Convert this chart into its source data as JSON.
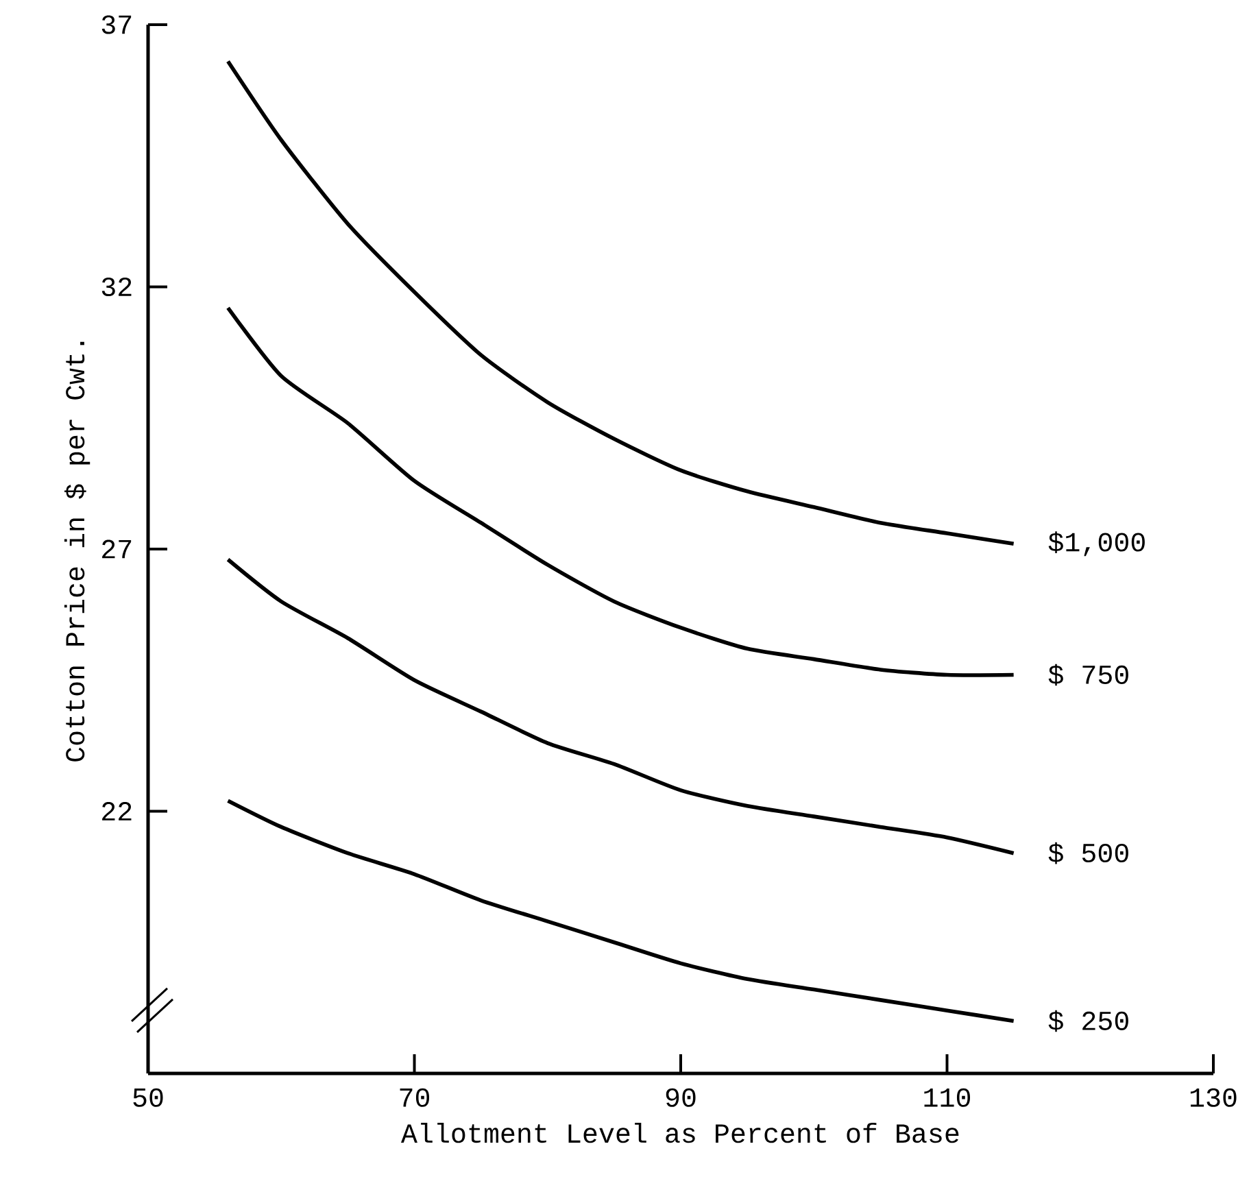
{
  "chart_data": {
    "type": "line",
    "xlabel": "Allotment Level as Percent of Base",
    "ylabel": "Cotton Price in $ per Cwt.",
    "x": [
      56,
      60,
      65,
      70,
      75,
      80,
      85,
      90,
      95,
      100,
      105,
      110,
      115
    ],
    "series": [
      {
        "name": "$1,000",
        "color": "#000000",
        "values": [
          36.3,
          34.8,
          33.2,
          31.9,
          30.7,
          29.8,
          29.1,
          28.5,
          28.1,
          27.8,
          27.5,
          27.3,
          27.1
        ]
      },
      {
        "name": "$ 750",
        "color": "#000000",
        "values": [
          31.6,
          30.3,
          29.4,
          28.3,
          27.5,
          26.7,
          26.0,
          25.5,
          25.1,
          24.9,
          24.7,
          24.6,
          24.6
        ]
      },
      {
        "name": "$ 500",
        "color": "#000000",
        "values": [
          26.8,
          26.0,
          25.3,
          24.5,
          23.9,
          23.3,
          22.9,
          22.4,
          22.1,
          21.9,
          21.7,
          21.5,
          21.2
        ]
      },
      {
        "name": "$ 250",
        "color": "#000000",
        "values": [
          22.2,
          21.7,
          21.2,
          20.8,
          20.3,
          19.9,
          19.5,
          19.1,
          18.8,
          18.6,
          18.4,
          18.2,
          18.0
        ]
      }
    ],
    "xlim": [
      50,
      130
    ],
    "xticks": [
      50,
      70,
      90,
      110,
      130
    ],
    "ylim": [
      17,
      37
    ],
    "yticks": [
      22,
      27,
      32,
      37
    ],
    "grid": false
  }
}
